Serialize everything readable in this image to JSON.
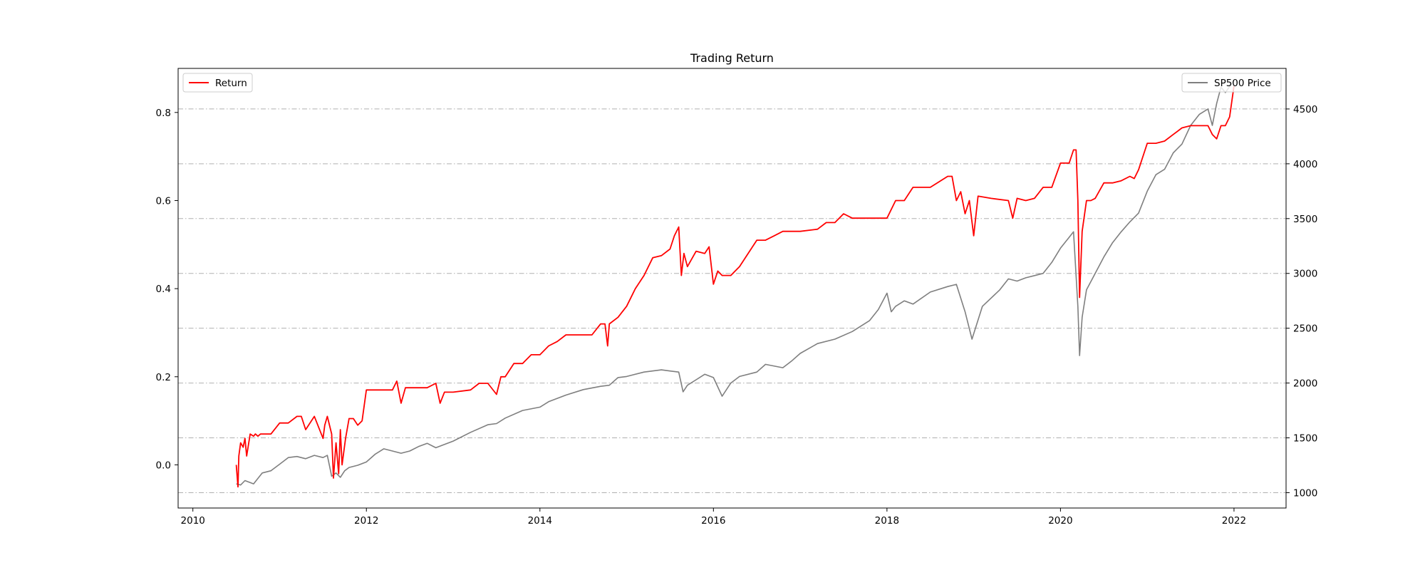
{
  "chart_data": {
    "type": "line",
    "title": "Trading Return",
    "xlabel": "",
    "ylabel": "",
    "y2label": "",
    "xlim": [
      2009.83,
      2022.6
    ],
    "ylim": [
      -0.098,
      0.9
    ],
    "y2lim": [
      860,
      4870
    ],
    "x_ticks": [
      2010,
      2012,
      2014,
      2016,
      2018,
      2020,
      2022
    ],
    "y_ticks": [
      0.0,
      0.2,
      0.4,
      0.6,
      0.8
    ],
    "y2_ticks": [
      1000,
      1500,
      2000,
      2500,
      3000,
      3500,
      4000,
      4500
    ],
    "x_tick_labels": [
      "2010",
      "2012",
      "2014",
      "2016",
      "2018",
      "2020",
      "2022"
    ],
    "y_tick_labels": [
      "0.0",
      "0.2",
      "0.4",
      "0.6",
      "0.8"
    ],
    "y2_tick_labels": [
      "1000",
      "1500",
      "2000",
      "2500",
      "3000",
      "3500",
      "4000",
      "4500"
    ],
    "grid": "horizontal dash-dot on secondary axis",
    "legend_left": {
      "label": "Return",
      "placement": "upper-left"
    },
    "legend_right": {
      "label": "SP500 Price",
      "placement": "upper-right"
    },
    "series": [
      {
        "name": "Return",
        "axis": "left",
        "color": "#ff0000",
        "x": [
          2010.5,
          2010.52,
          2010.53,
          2010.55,
          2010.58,
          2010.6,
          2010.62,
          2010.66,
          2010.7,
          2010.72,
          2010.75,
          2010.78,
          2010.9,
          2011.0,
          2011.1,
          2011.2,
          2011.25,
          2011.3,
          2011.4,
          2011.5,
          2011.52,
          2011.55,
          2011.6,
          2011.62,
          2011.65,
          2011.68,
          2011.7,
          2011.72,
          2011.76,
          2011.8,
          2011.85,
          2011.9,
          2011.95,
          2012.0,
          2012.1,
          2012.3,
          2012.35,
          2012.4,
          2012.45,
          2012.5,
          2012.7,
          2012.8,
          2012.85,
          2012.9,
          2013.0,
          2013.2,
          2013.3,
          2013.4,
          2013.5,
          2013.55,
          2013.6,
          2013.7,
          2013.8,
          2013.9,
          2014.0,
          2014.1,
          2014.2,
          2014.3,
          2014.45,
          2014.6,
          2014.7,
          2014.75,
          2014.78,
          2014.8,
          2014.9,
          2015.0,
          2015.1,
          2015.2,
          2015.3,
          2015.4,
          2015.5,
          2015.55,
          2015.6,
          2015.63,
          2015.66,
          2015.7,
          2015.8,
          2015.9,
          2015.95,
          2016.0,
          2016.05,
          2016.1,
          2016.2,
          2016.3,
          2016.4,
          2016.5,
          2016.6,
          2016.7,
          2016.8,
          2016.9,
          2017.0,
          2017.2,
          2017.3,
          2017.4,
          2017.5,
          2017.6,
          2017.8,
          2018.0,
          2018.1,
          2018.2,
          2018.3,
          2018.5,
          2018.7,
          2018.75,
          2018.8,
          2018.85,
          2018.9,
          2018.95,
          2019.0,
          2019.05,
          2019.2,
          2019.4,
          2019.45,
          2019.5,
          2019.6,
          2019.7,
          2019.8,
          2019.9,
          2020.0,
          2020.1,
          2020.15,
          2020.18,
          2020.2,
          2020.22,
          2020.25,
          2020.3,
          2020.35,
          2020.4,
          2020.5,
          2020.6,
          2020.7,
          2020.8,
          2020.85,
          2020.9,
          2021.0,
          2021.1,
          2021.2,
          2021.3,
          2021.4,
          2021.5,
          2021.6,
          2021.7,
          2021.75,
          2021.8,
          2021.85,
          2021.9,
          2021.95,
          2022.0
        ],
        "y": [
          0.0,
          -0.05,
          0.02,
          0.05,
          0.04,
          0.06,
          0.02,
          0.07,
          0.065,
          0.07,
          0.065,
          0.07,
          0.07,
          0.095,
          0.095,
          0.11,
          0.11,
          0.08,
          0.11,
          0.06,
          0.09,
          0.11,
          0.07,
          -0.03,
          0.05,
          -0.02,
          0.08,
          0.0,
          0.06,
          0.105,
          0.105,
          0.09,
          0.1,
          0.17,
          0.17,
          0.17,
          0.19,
          0.14,
          0.175,
          0.175,
          0.175,
          0.185,
          0.14,
          0.165,
          0.165,
          0.17,
          0.185,
          0.185,
          0.16,
          0.2,
          0.2,
          0.23,
          0.23,
          0.25,
          0.25,
          0.27,
          0.28,
          0.295,
          0.295,
          0.295,
          0.32,
          0.32,
          0.27,
          0.32,
          0.335,
          0.36,
          0.4,
          0.43,
          0.47,
          0.475,
          0.49,
          0.52,
          0.54,
          0.43,
          0.48,
          0.45,
          0.485,
          0.48,
          0.495,
          0.41,
          0.44,
          0.43,
          0.43,
          0.45,
          0.48,
          0.51,
          0.51,
          0.52,
          0.53,
          0.53,
          0.53,
          0.535,
          0.55,
          0.55,
          0.57,
          0.56,
          0.56,
          0.56,
          0.6,
          0.6,
          0.63,
          0.63,
          0.655,
          0.655,
          0.6,
          0.62,
          0.57,
          0.6,
          0.52,
          0.61,
          0.605,
          0.6,
          0.56,
          0.605,
          0.6,
          0.605,
          0.63,
          0.63,
          0.685,
          0.685,
          0.715,
          0.715,
          0.6,
          0.38,
          0.53,
          0.6,
          0.6,
          0.605,
          0.64,
          0.64,
          0.645,
          0.655,
          0.65,
          0.67,
          0.73,
          0.73,
          0.735,
          0.75,
          0.765,
          0.77,
          0.77,
          0.77,
          0.75,
          0.74,
          0.77,
          0.77,
          0.79,
          0.86
        ]
      },
      {
        "name": "SP500 Price",
        "axis": "right",
        "color": "#7f7f7f",
        "x": [
          2010.5,
          2010.55,
          2010.6,
          2010.7,
          2010.8,
          2010.9,
          2011.0,
          2011.1,
          2011.2,
          2011.3,
          2011.4,
          2011.5,
          2011.55,
          2011.6,
          2011.65,
          2011.7,
          2011.75,
          2011.8,
          2011.9,
          2012.0,
          2012.1,
          2012.2,
          2012.3,
          2012.4,
          2012.5,
          2012.6,
          2012.7,
          2012.8,
          2012.9,
          2013.0,
          2013.2,
          2013.4,
          2013.5,
          2013.6,
          2013.8,
          2014.0,
          2014.1,
          2014.3,
          2014.5,
          2014.7,
          2014.8,
          2014.9,
          2015.0,
          2015.2,
          2015.4,
          2015.5,
          2015.6,
          2015.65,
          2015.7,
          2015.8,
          2015.9,
          2016.0,
          2016.1,
          2016.2,
          2016.3,
          2016.5,
          2016.6,
          2016.8,
          2016.9,
          2017.0,
          2017.2,
          2017.4,
          2017.6,
          2017.8,
          2017.9,
          2018.0,
          2018.05,
          2018.1,
          2018.2,
          2018.3,
          2018.5,
          2018.7,
          2018.8,
          2018.9,
          2018.98,
          2019.1,
          2019.3,
          2019.4,
          2019.5,
          2019.6,
          2019.7,
          2019.8,
          2019.9,
          2020.0,
          2020.1,
          2020.15,
          2020.2,
          2020.22,
          2020.25,
          2020.3,
          2020.4,
          2020.5,
          2020.6,
          2020.7,
          2020.8,
          2020.9,
          2021.0,
          2021.1,
          2021.2,
          2021.3,
          2021.4,
          2021.5,
          2021.6,
          2021.7,
          2021.75,
          2021.8,
          2021.85,
          2021.9,
          2022.0
        ],
        "y": [
          1080,
          1070,
          1110,
          1080,
          1180,
          1200,
          1260,
          1320,
          1330,
          1310,
          1340,
          1320,
          1340,
          1150,
          1180,
          1140,
          1200,
          1230,
          1250,
          1280,
          1350,
          1400,
          1380,
          1360,
          1380,
          1420,
          1450,
          1410,
          1440,
          1470,
          1550,
          1620,
          1630,
          1680,
          1750,
          1780,
          1830,
          1890,
          1940,
          1970,
          1980,
          2050,
          2060,
          2100,
          2120,
          2110,
          2100,
          1920,
          1980,
          2030,
          2080,
          2050,
          1880,
          2000,
          2060,
          2100,
          2170,
          2140,
          2200,
          2270,
          2360,
          2400,
          2470,
          2570,
          2670,
          2820,
          2650,
          2700,
          2750,
          2720,
          2830,
          2880,
          2900,
          2650,
          2400,
          2700,
          2850,
          2950,
          2930,
          2960,
          2980,
          3000,
          3100,
          3230,
          3330,
          3380,
          2700,
          2250,
          2600,
          2850,
          3000,
          3150,
          3280,
          3380,
          3470,
          3550,
          3750,
          3900,
          3950,
          4100,
          4180,
          4350,
          4450,
          4500,
          4350,
          4550,
          4700,
          4650,
          4760
        ]
      }
    ]
  }
}
